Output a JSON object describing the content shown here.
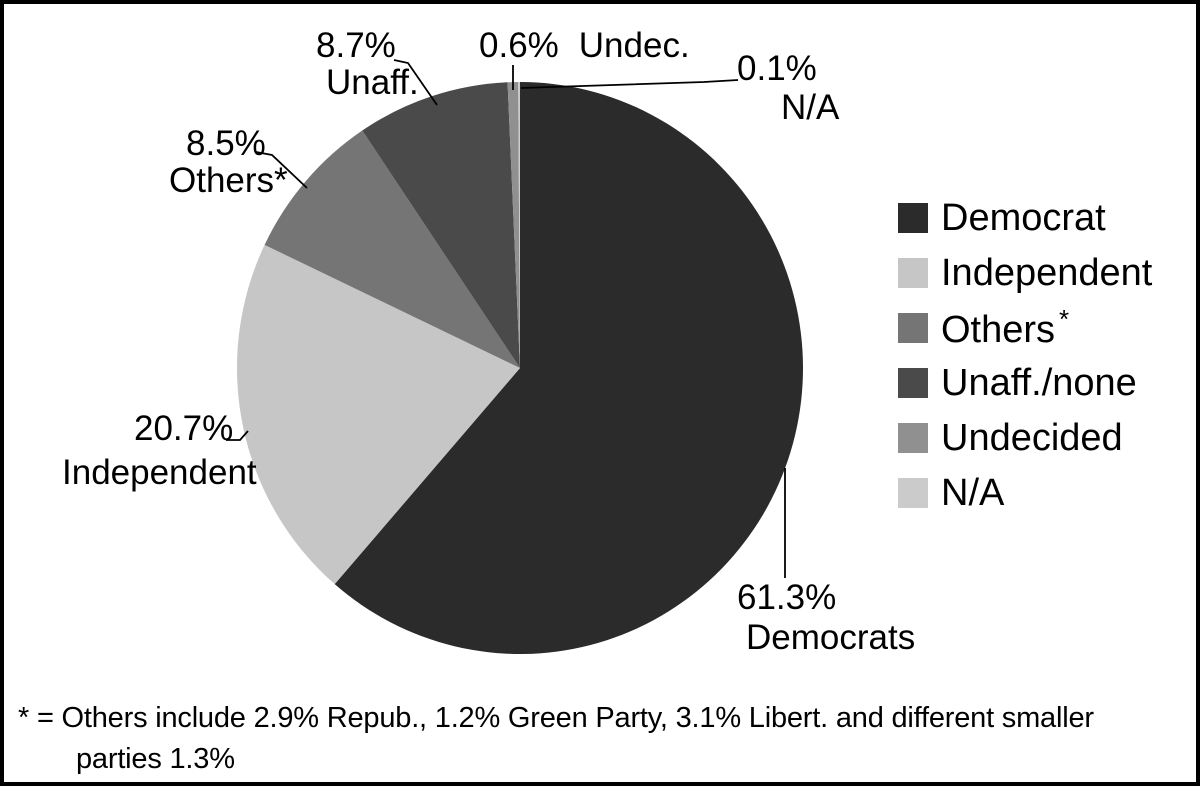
{
  "figure": {
    "background": "#ffffff",
    "border_color": "#000000"
  },
  "chart_data": {
    "type": "pie",
    "title": "",
    "legend_position": "right",
    "direction": "clockwise",
    "start_angle_deg": 0,
    "slices": [
      {
        "label": "Democrat",
        "value": 61.3,
        "color": "#2b2b2b"
      },
      {
        "label": "Independent",
        "value": 20.7,
        "color": "#c6c6c6"
      },
      {
        "label": "Others",
        "label_sup": "*",
        "value": 8.5,
        "color": "#757575"
      },
      {
        "label": "Unaff./none",
        "value": 8.7,
        "color": "#4a4a4a"
      },
      {
        "label": "Undecided",
        "value": 0.6,
        "color": "#909090"
      },
      {
        "label": "N/A",
        "value": 0.1,
        "color": "#cbcbcb"
      }
    ]
  },
  "callouts": {
    "unaff": {
      "pct": "8.7%",
      "name": "Unaff."
    },
    "undec": {
      "pct": "0.6%",
      "name": "Undec."
    },
    "na": {
      "pct": "0.1%",
      "name": "N/A"
    },
    "others": {
      "pct": "8.5%",
      "name": "Others*"
    },
    "independent": {
      "pct": "20.7%",
      "name": "Independent"
    },
    "democrat": {
      "pct": "61.3%",
      "name": "Democrats"
    }
  },
  "footnote": {
    "line1": "* = Others include 2.9% Repub., 1.2% Green Party, 3.1% Libert. and different smaller",
    "line2": "parties 1.3%"
  }
}
